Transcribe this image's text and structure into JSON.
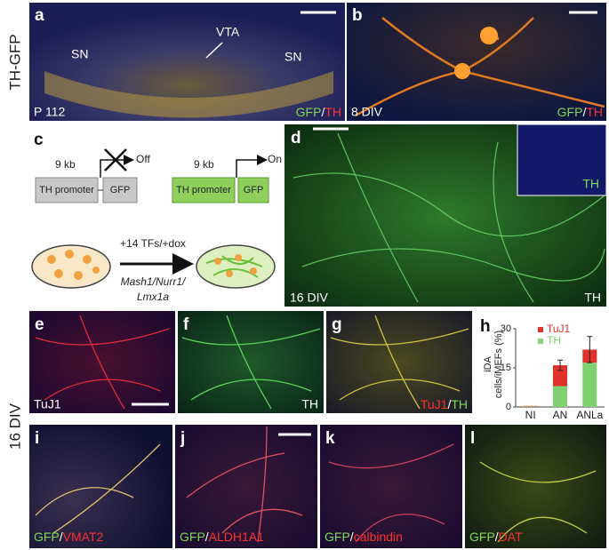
{
  "side_labels": {
    "top": "TH-GFP",
    "bottom": "16 DIV"
  },
  "panels": {
    "a": {
      "letter": "a",
      "regions": [
        "SN",
        "VTA",
        "SN"
      ],
      "age": "P 112",
      "stain": [
        "GFP",
        "/",
        "TH"
      ]
    },
    "b": {
      "letter": "b",
      "age": "8 DIV",
      "stain": [
        "GFP",
        "/",
        "TH"
      ]
    },
    "c": {
      "letter": "c",
      "off": {
        "size": "9 kb",
        "status": "Off",
        "promoter": "TH promoter",
        "reporter": "GFP"
      },
      "on": {
        "size": "9 kb",
        "status": "On",
        "promoter": "TH promoter",
        "reporter": "GFP"
      },
      "treatment": "+14 TFs/+dox",
      "factors": [
        "Mash1/Nurr1/",
        "Lmx1a"
      ]
    },
    "d": {
      "letter": "d",
      "age": "16 DIV",
      "stain": "TH",
      "inset_stain": "TH"
    },
    "e": {
      "letter": "e",
      "stain": "TuJ1"
    },
    "f": {
      "letter": "f",
      "stain": "TH"
    },
    "g": {
      "letter": "g",
      "stain": [
        "TuJ1",
        "/",
        "TH"
      ]
    },
    "h": {
      "letter": "h"
    },
    "i": {
      "letter": "i",
      "stain": [
        "GFP",
        "/",
        "VMAT2"
      ]
    },
    "j": {
      "letter": "j",
      "stain": [
        "GFP",
        "/",
        "ALDH1A1"
      ]
    },
    "k": {
      "letter": "k",
      "stain": [
        "GFP",
        "/",
        "calbindin"
      ]
    },
    "l": {
      "letter": "l",
      "stain": [
        "GFP",
        "/",
        "DAT"
      ]
    }
  },
  "chart_data": {
    "type": "bar",
    "stacked": true,
    "ylabel": [
      "iDA",
      "cells/iMEFs (%)"
    ],
    "categories": [
      "NI",
      "AN",
      "ANLa"
    ],
    "series": [
      {
        "name": "TuJ1",
        "color": "#e0322a",
        "values": [
          0.2,
          8,
          5
        ],
        "errors": [
          0,
          2,
          5
        ]
      },
      {
        "name": "TH",
        "color": "#7fd06f",
        "values": [
          0.2,
          8,
          17
        ]
      }
    ],
    "ylim": [
      0,
      30
    ],
    "yticks": [
      0,
      15,
      30
    ]
  }
}
